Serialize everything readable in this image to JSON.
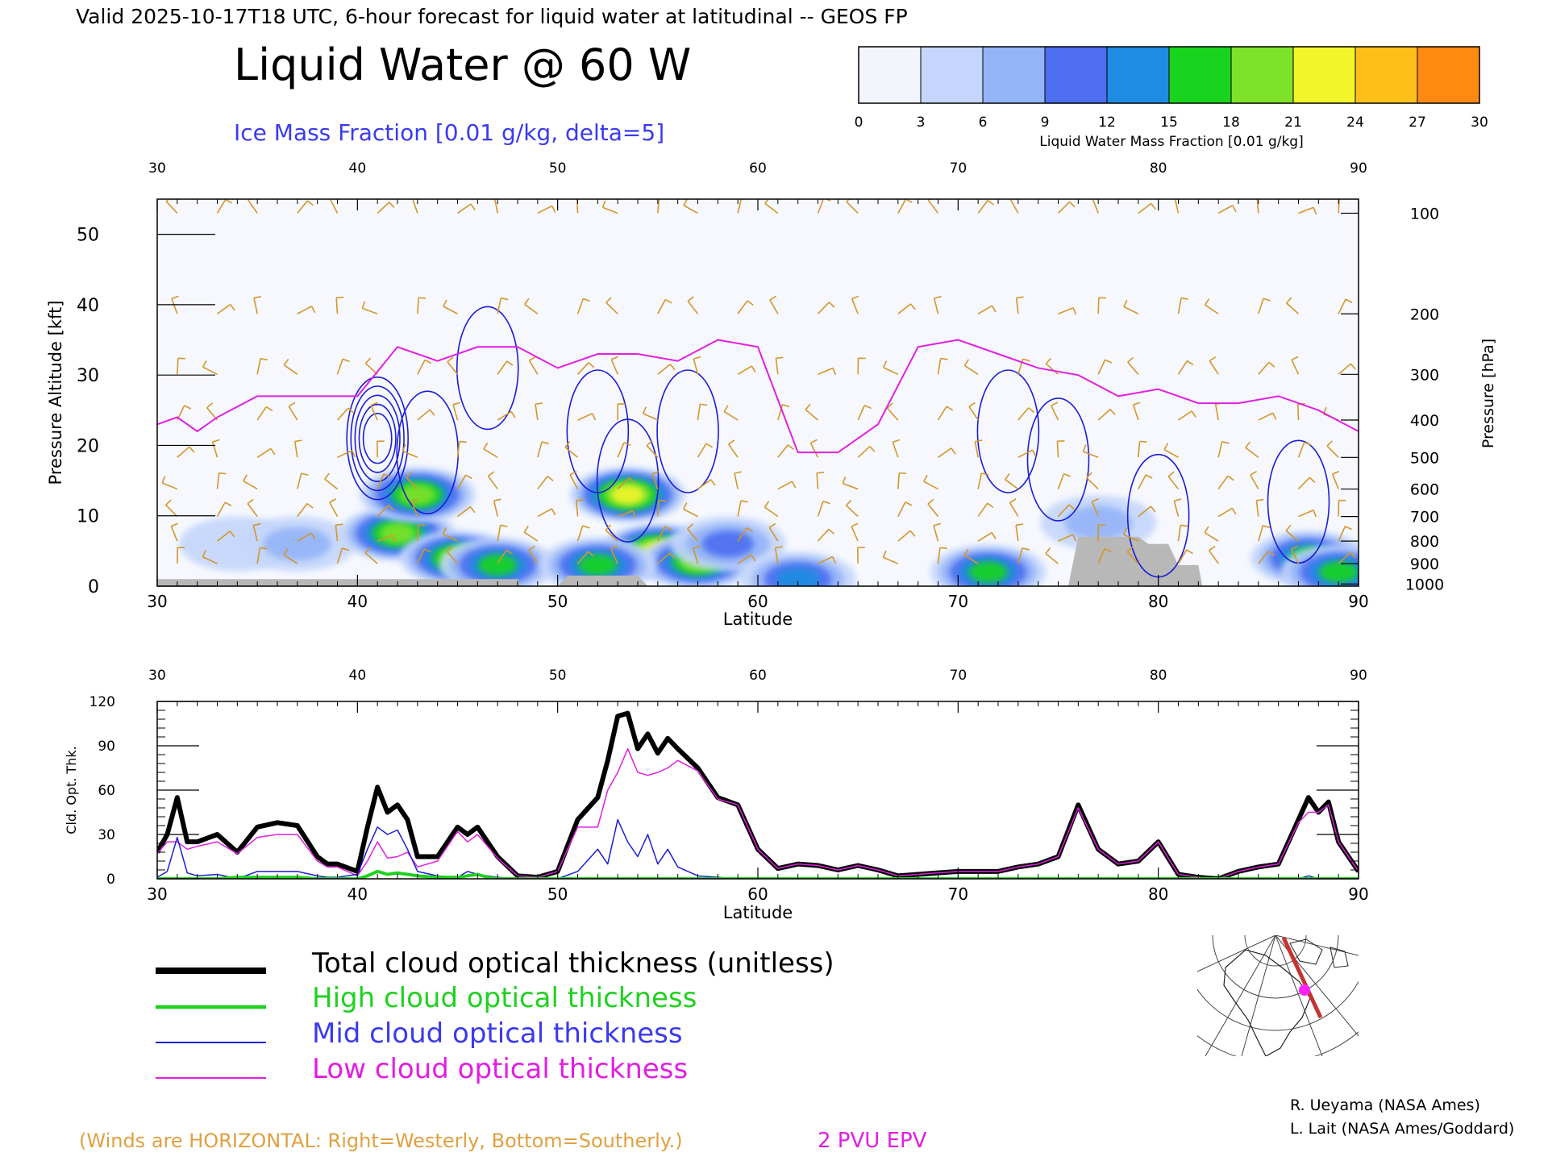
{
  "header": {
    "valid_line": "Valid 2025-10-17T18 UTC, 6-hour forecast for liquid water at latitudinal -- GEOS FP",
    "main_title": "Liquid Water @ 60 W",
    "subtitle": "Ice Mass Fraction [0.01 g/kg, delta=5]"
  },
  "colorbar": {
    "ticks": [
      "0",
      "3",
      "6",
      "9",
      "12",
      "15",
      "18",
      "21",
      "24",
      "27",
      "30"
    ],
    "label": "Liquid Water Mass Fraction [0.01 g/kg]",
    "colors": [
      "#f3f5fd",
      "#c4d6fb",
      "#94b4f8",
      "#4d6ef0",
      "#1e8ce0",
      "#19d41e",
      "#7ee22a",
      "#f2f52a",
      "#ffbf1a",
      "#ff8a12"
    ]
  },
  "colors": {
    "ice_contour": "#1c1cd6",
    "epv_line": "#e21ee2",
    "wind_barb": "#d4962a",
    "terrain": "#b8b8b8",
    "total": "#000000",
    "high": "#1ed21e",
    "mid": "#1c1cd6",
    "low": "#e21ee2",
    "winds_note": "#e0a040"
  },
  "chart_data": [
    {
      "type": "heatmap",
      "title": "Liquid Water @ 60 W",
      "xlabel": "Latitude",
      "ylabel": "Pressure Altitude [kft]",
      "y2label": "Pressure [hPa]",
      "xlim": [
        30,
        90
      ],
      "ylim": [
        0,
        55
      ],
      "x_ticks": [
        "30",
        "40",
        "50",
        "60",
        "70",
        "80",
        "90"
      ],
      "y_ticks": [
        "0",
        "10",
        "20",
        "30",
        "40",
        "50"
      ],
      "pressure_ticks": [
        {
          "label": "100",
          "kft": 53
        },
        {
          "label": "200",
          "kft": 38.7
        },
        {
          "label": "300",
          "kft": 30.1
        },
        {
          "label": "400",
          "kft": 23.6
        },
        {
          "label": "500",
          "kft": 18.3
        },
        {
          "label": "600",
          "kft": 13.8
        },
        {
          "label": "700",
          "kft": 9.9
        },
        {
          "label": "800",
          "kft": 6.4
        },
        {
          "label": "900",
          "kft": 3.2
        },
        {
          "label": "1000",
          "kft": 0.3
        }
      ],
      "epv_2pvu_kft": {
        "lat": [
          30,
          31,
          32,
          33,
          35,
          37,
          40,
          42,
          44,
          46,
          48,
          50,
          52,
          54,
          56,
          58,
          60,
          62,
          64,
          66,
          68,
          70,
          72,
          74,
          76,
          78,
          80,
          82,
          84,
          86,
          88,
          90
        ],
        "kft": [
          23,
          24,
          22,
          24,
          27,
          27,
          27,
          34,
          32,
          34,
          34,
          31,
          33,
          33,
          32,
          35,
          34,
          19,
          19,
          23,
          34,
          35,
          33,
          31,
          30,
          27,
          28,
          26,
          26,
          27,
          25,
          22
        ]
      },
      "terrain_kft": {
        "lat": [
          30,
          48,
          48.2,
          50,
          50.5,
          54,
          54.5,
          75.5,
          76,
          79,
          79.5,
          80.5,
          81,
          82,
          82.2,
          90
        ],
        "kft": [
          1,
          1,
          0,
          0,
          1.5,
          1.5,
          0,
          0,
          7,
          7,
          6,
          6,
          3,
          3,
          0,
          0
        ]
      },
      "liquid_water_blobs": [
        {
          "lat": 34,
          "kft": 6,
          "value": 4
        },
        {
          "lat": 37,
          "kft": 6,
          "value": 6
        },
        {
          "lat": 42,
          "kft": 7.5,
          "value": 19
        },
        {
          "lat": 43,
          "kft": 13,
          "value": 18
        },
        {
          "lat": 45,
          "kft": 4,
          "value": 18
        },
        {
          "lat": 47,
          "kft": 3,
          "value": 17
        },
        {
          "lat": 53.5,
          "kft": 13,
          "value": 21
        },
        {
          "lat": 55,
          "kft": 5,
          "value": 23
        },
        {
          "lat": 57,
          "kft": 3.5,
          "value": 19
        },
        {
          "lat": 52,
          "kft": 3,
          "value": 17
        },
        {
          "lat": 58.5,
          "kft": 6,
          "value": 11
        },
        {
          "lat": 62,
          "kft": 1,
          "value": 14
        },
        {
          "lat": 71.5,
          "kft": 2,
          "value": 15
        },
        {
          "lat": 77,
          "kft": 9,
          "value": 7
        },
        {
          "lat": 87.5,
          "kft": 4,
          "value": 17
        },
        {
          "lat": 89,
          "kft": 2,
          "value": 15
        }
      ],
      "ice_contours": [
        {
          "lat": 41,
          "kft": 21,
          "value": 25
        },
        {
          "lat": 43.5,
          "kft": 19,
          "value": 5
        },
        {
          "lat": 46.5,
          "kft": 31,
          "value": 5
        },
        {
          "lat": 52,
          "kft": 22,
          "value": 5
        },
        {
          "lat": 53.5,
          "kft": 15,
          "value": 5
        },
        {
          "lat": 56.5,
          "kft": 22,
          "value": 5
        },
        {
          "lat": 72.5,
          "kft": 22,
          "value": 5
        },
        {
          "lat": 75,
          "kft": 18,
          "value": 5
        },
        {
          "lat": 80,
          "kft": 10,
          "value": 5
        },
        {
          "lat": 87,
          "kft": 12,
          "value": 5
        }
      ]
    },
    {
      "type": "line",
      "xlabel": "Latitude",
      "ylabel": "Cld. Opt. Thk.",
      "xlim": [
        30,
        90
      ],
      "ylim": [
        0,
        120
      ],
      "x_ticks": [
        "30",
        "40",
        "50",
        "60",
        "70",
        "80",
        "90"
      ],
      "y_ticks": [
        "0",
        "30",
        "60",
        "90",
        "120"
      ],
      "x": [
        30,
        30.5,
        31,
        31.5,
        32,
        33,
        34,
        35,
        36,
        37,
        38,
        38.5,
        39,
        40,
        40.5,
        41,
        41.5,
        42,
        42.5,
        43,
        44,
        45,
        45.5,
        46,
        46.5,
        47,
        48,
        49,
        50,
        51,
        52,
        52.5,
        53,
        53.5,
        54,
        54.5,
        55,
        55.5,
        56,
        57,
        58,
        59,
        60,
        61,
        62,
        63,
        64,
        65,
        66,
        67,
        68,
        69,
        70,
        71,
        72,
        73,
        74,
        75,
        76,
        77,
        78,
        79,
        80,
        81,
        82,
        83,
        84,
        85,
        86,
        87,
        87.5,
        88,
        88.5,
        89,
        90
      ],
      "series": [
        {
          "name": "Total cloud optical thickness (unitless)",
          "values": [
            18,
            30,
            55,
            25,
            25,
            30,
            18,
            35,
            38,
            36,
            15,
            10,
            10,
            5,
            35,
            62,
            45,
            50,
            40,
            15,
            15,
            35,
            30,
            35,
            25,
            15,
            2,
            1,
            5,
            40,
            55,
            80,
            110,
            112,
            88,
            98,
            85,
            95,
            88,
            75,
            55,
            50,
            20,
            7,
            10,
            9,
            6,
            9,
            6,
            2,
            3,
            4,
            5,
            5,
            5,
            8,
            10,
            15,
            50,
            20,
            10,
            12,
            25,
            3,
            1,
            0,
            5,
            8,
            10,
            40,
            55,
            45,
            52,
            25,
            5
          ]
        },
        {
          "name": "High cloud optical thickness",
          "values": [
            0,
            0,
            0,
            0,
            0,
            0,
            1,
            1,
            1,
            1,
            0,
            0,
            0,
            0,
            2,
            5,
            3,
            4,
            3,
            2,
            1,
            1,
            2,
            3,
            1,
            0,
            0,
            0,
            0,
            0,
            0,
            0,
            0,
            0,
            0,
            0,
            0,
            0,
            0,
            0,
            0,
            0,
            0,
            0,
            0,
            0,
            0,
            0,
            0,
            0,
            0,
            0,
            0,
            0,
            0,
            0,
            0,
            0,
            0,
            0,
            0,
            0,
            0,
            0,
            0,
            0,
            0,
            0,
            0,
            0,
            0,
            0,
            0,
            0,
            0
          ]
        },
        {
          "name": "Mid cloud optical thickness",
          "values": [
            1,
            5,
            28,
            4,
            2,
            3,
            0,
            5,
            5,
            5,
            2,
            1,
            1,
            3,
            20,
            35,
            30,
            33,
            20,
            5,
            2,
            1,
            5,
            3,
            2,
            1,
            0,
            0,
            0,
            5,
            20,
            10,
            40,
            25,
            15,
            30,
            10,
            20,
            8,
            2,
            1,
            0,
            0,
            0,
            0,
            0,
            0,
            0,
            0,
            0,
            0,
            0,
            0,
            0,
            0,
            0,
            0,
            0,
            0,
            0,
            0,
            0,
            0,
            0,
            0,
            0,
            0,
            0,
            0,
            0,
            2,
            0,
            0,
            0,
            0
          ]
        },
        {
          "name": "Low cloud optical thickness",
          "values": [
            17,
            25,
            25,
            20,
            22,
            25,
            17,
            28,
            30,
            30,
            12,
            8,
            8,
            2,
            12,
            25,
            14,
            15,
            18,
            8,
            12,
            32,
            25,
            30,
            22,
            14,
            2,
            1,
            5,
            35,
            35,
            60,
            72,
            88,
            72,
            70,
            72,
            75,
            80,
            73,
            54,
            50,
            20,
            7,
            10,
            9,
            6,
            9,
            6,
            2,
            3,
            4,
            5,
            5,
            5,
            8,
            10,
            15,
            48,
            20,
            10,
            12,
            25,
            3,
            1,
            0,
            5,
            8,
            10,
            38,
            45,
            45,
            50,
            25,
            5
          ]
        }
      ]
    }
  ],
  "legend": {
    "total": "Total cloud optical thickness (unitless)",
    "high": "High cloud optical thickness",
    "mid": "Mid cloud optical thickness",
    "low": "Low cloud optical thickness"
  },
  "footer": {
    "winds_note": "(Winds are HORIZONTAL: Right=Westerly, Bottom=Southerly.)",
    "epv_label": "2 PVU EPV",
    "credit1": "R. Ueyama (NASA Ames)",
    "credit2": "L. Lait (NASA Ames/Goddard)"
  }
}
